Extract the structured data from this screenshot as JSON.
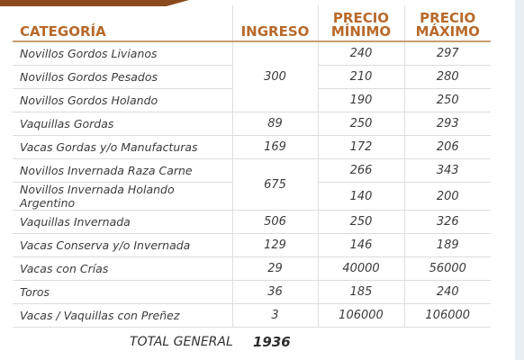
{
  "table": {
    "headers": {
      "categoria": "CATEGORÍA",
      "ingreso": "INGRESO",
      "precio_min": "PRECIO MÍNIMO",
      "precio_max": "PRECIO MÁXIMO"
    },
    "rows": [
      {
        "categoria": "Novillos Gordos Livianos",
        "ingreso": "300",
        "min": "240",
        "max": "297"
      },
      {
        "categoria": "Novillos Gordos Pesados",
        "ingreso": "",
        "min": "210",
        "max": "280"
      },
      {
        "categoria": "Novillos Gordos Holando",
        "ingreso": "",
        "min": "190",
        "max": "250"
      },
      {
        "categoria": "Vaquillas Gordas",
        "ingreso": "89",
        "min": "250",
        "max": "293"
      },
      {
        "categoria": "Vacas Gordas y/o Manufacturas",
        "ingreso": "169",
        "min": "172",
        "max": "206"
      },
      {
        "categoria": "Novillos Invernada Raza Carne",
        "ingreso": "675",
        "min": "266",
        "max": "343"
      },
      {
        "categoria": "Novillos Invernada Holando Argentino",
        "ingreso": "",
        "min": "140",
        "max": "200"
      },
      {
        "categoria": "Vaquillas Invernada",
        "ingreso": "506",
        "min": "250",
        "max": "326"
      },
      {
        "categoria": "Vacas Conserva y/o Invernada",
        "ingreso": "129",
        "min": "146",
        "max": "189"
      },
      {
        "categoria": "Vacas con Crías",
        "ingreso": "29",
        "min": "40000",
        "max": "56000"
      },
      {
        "categoria": "Toros",
        "ingreso": "36",
        "min": "185",
        "max": "240"
      },
      {
        "categoria": "Vacas / Vaquillas con Preñez",
        "ingreso": "3",
        "min": "106000",
        "max": "106000"
      }
    ]
  },
  "total": {
    "label": "TOTAL GENERAL",
    "value": "1936"
  },
  "colors": {
    "header": "#b8692a",
    "band": "#8a4a1e"
  }
}
